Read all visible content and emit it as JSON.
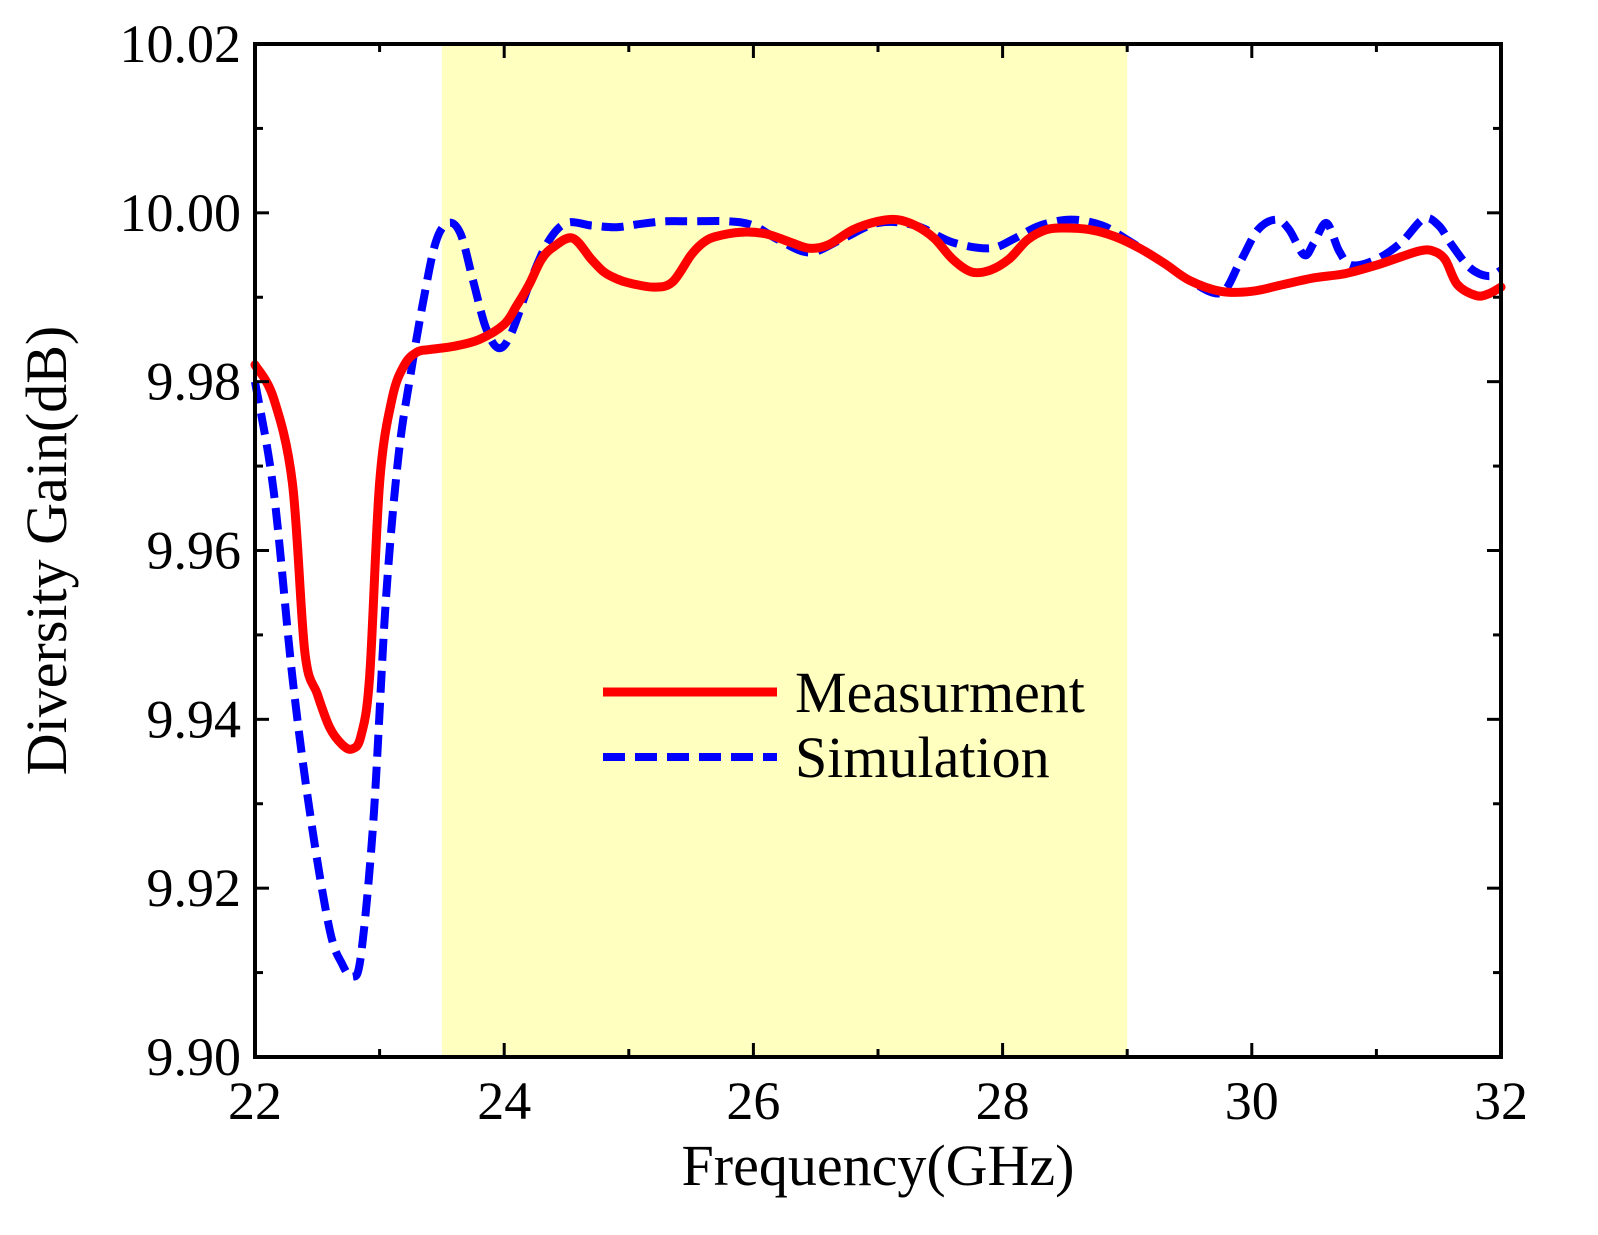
{
  "chart_data": {
    "type": "line",
    "title": "",
    "xlabel": "Frequency(GHz)",
    "ylabel": "Diversity Gain(dB)",
    "xlim": [
      22,
      32
    ],
    "ylim": [
      9.9,
      10.02
    ],
    "xticks": [
      22,
      24,
      26,
      28,
      30,
      32
    ],
    "xtick_labels": [
      "22",
      "24",
      "26",
      "28",
      "30",
      "32"
    ],
    "yticks": [
      9.9,
      9.92,
      9.94,
      9.96,
      9.98,
      10.0,
      10.02
    ],
    "ytick_labels": [
      "9.90",
      "9.92",
      "9.94",
      "9.96",
      "9.98",
      "10.00",
      "10.02"
    ],
    "grid": false,
    "legend_position": "center",
    "highlight_band": {
      "x_start": 23.5,
      "x_end": 29.0,
      "color": "#ffffc0"
    },
    "series": [
      {
        "name": "Measurment",
        "color": "#ff0000",
        "style": "solid",
        "x": [
          22.0,
          22.15,
          22.3,
          22.4,
          22.5,
          22.6,
          22.7,
          22.78,
          22.85,
          22.92,
          23.0,
          23.1,
          23.2,
          23.3,
          23.4,
          23.6,
          23.8,
          24.0,
          24.1,
          24.2,
          24.3,
          24.4,
          24.55,
          24.7,
          24.8,
          24.9,
          25.0,
          25.2,
          25.35,
          25.5,
          25.6,
          25.7,
          25.9,
          26.1,
          26.3,
          26.45,
          26.6,
          26.8,
          27.0,
          27.15,
          27.3,
          27.45,
          27.6,
          27.75,
          27.9,
          28.05,
          28.2,
          28.35,
          28.5,
          28.7,
          28.9,
          29.1,
          29.3,
          29.5,
          29.75,
          30.0,
          30.25,
          30.5,
          30.75,
          31.0,
          31.2,
          31.35,
          31.45,
          31.55,
          31.65,
          31.8,
          31.9,
          32.0
        ],
        "values": [
          9.982,
          9.978,
          9.968,
          9.948,
          9.943,
          9.939,
          9.937,
          9.9365,
          9.938,
          9.945,
          9.968,
          9.978,
          9.982,
          9.9835,
          9.9838,
          9.9842,
          9.985,
          9.9868,
          9.989,
          9.9915,
          9.9945,
          9.996,
          9.997,
          9.9945,
          9.993,
          9.9922,
          9.9917,
          9.9912,
          9.9918,
          9.995,
          9.9965,
          9.9972,
          9.9977,
          9.9975,
          9.9965,
          9.9958,
          9.9962,
          9.998,
          9.999,
          9.9992,
          9.9985,
          9.997,
          9.9945,
          9.993,
          9.9932,
          9.9945,
          9.9968,
          9.998,
          9.9982,
          9.998,
          9.9972,
          9.9958,
          9.994,
          9.992,
          9.9907,
          9.9907,
          9.9915,
          9.9923,
          9.9928,
          9.9938,
          9.9948,
          9.9955,
          9.9955,
          9.9945,
          9.9915,
          9.9902,
          9.9904,
          9.9912
        ]
      },
      {
        "name": "Simulation",
        "color": "#0000ff",
        "style": "dashed",
        "x": [
          22.0,
          22.15,
          22.3,
          22.45,
          22.6,
          22.7,
          22.78,
          22.85,
          22.95,
          23.05,
          23.15,
          23.25,
          23.35,
          23.45,
          23.55,
          23.65,
          23.75,
          23.85,
          23.95,
          24.05,
          24.2,
          24.35,
          24.5,
          24.7,
          24.9,
          25.1,
          25.3,
          25.5,
          25.8,
          26.0,
          26.2,
          26.45,
          26.7,
          27.0,
          27.3,
          27.6,
          27.9,
          28.1,
          28.3,
          28.55,
          28.8,
          29.0,
          29.25,
          29.5,
          29.75,
          29.9,
          30.05,
          30.2,
          30.3,
          30.42,
          30.5,
          30.6,
          30.7,
          30.8,
          31.0,
          31.2,
          31.38,
          31.5,
          31.6,
          31.75,
          31.9,
          32.0
        ],
        "values": [
          9.98,
          9.967,
          9.945,
          9.928,
          9.915,
          9.911,
          9.9095,
          9.912,
          9.928,
          9.954,
          9.971,
          9.981,
          9.9895,
          9.9965,
          9.9988,
          9.9975,
          9.992,
          9.9865,
          9.984,
          9.9855,
          9.9915,
          9.9965,
          9.9988,
          9.9985,
          9.9983,
          9.9987,
          9.999,
          9.999,
          9.999,
          9.9985,
          9.9968,
          9.9953,
          9.9968,
          9.9988,
          9.9985,
          9.9965,
          9.9958,
          9.997,
          9.9985,
          9.9992,
          9.9985,
          9.9968,
          9.9945,
          9.992,
          9.9905,
          9.994,
          9.998,
          9.9992,
          9.998,
          9.995,
          9.9965,
          9.9988,
          9.9955,
          9.9938,
          9.9945,
          9.9965,
          9.9993,
          9.9985,
          9.9963,
          9.9935,
          9.9925,
          9.9932
        ]
      }
    ]
  }
}
